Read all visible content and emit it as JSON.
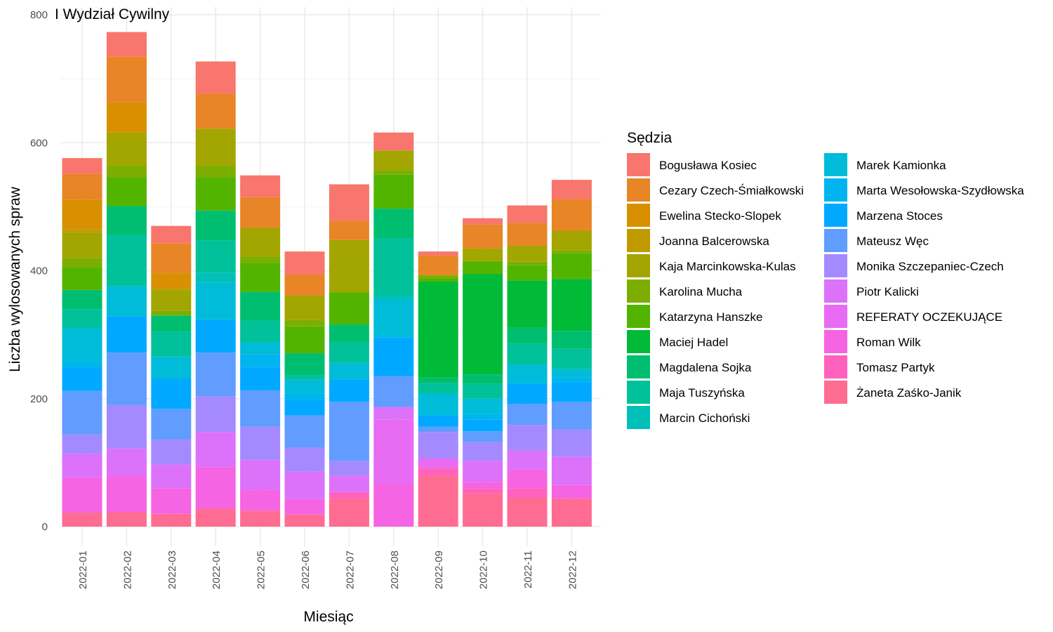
{
  "chart_data": {
    "type": "bar",
    "stacked": true,
    "title": "I Wydział Cywilny",
    "xlabel": "Miesiąc",
    "ylabel": "Liczba wylosowanych spraw",
    "ylim": [
      0,
      800
    ],
    "yticks": [
      0,
      200,
      400,
      600,
      800
    ],
    "grid": true,
    "legend_title": "Sędzia",
    "legend_position": "right",
    "categories": [
      "2022-01",
      "2022-02",
      "2022-03",
      "2022-04",
      "2022-05",
      "2022-06",
      "2022-07",
      "2022-08",
      "2022-09",
      "2022-10",
      "2022-11",
      "2022-12"
    ],
    "series": [
      {
        "name": "Żaneta Zaśko-Janik",
        "color": "#FF6C91",
        "values": [
          22,
          23,
          20,
          28,
          25,
          19,
          44,
          0,
          80,
          52,
          45,
          44
        ]
      },
      {
        "name": "Tomasz Partyk",
        "color": "#FF62BC",
        "values": [
          0,
          0,
          0,
          0,
          0,
          0,
          10,
          0,
          12,
          8,
          15,
          0
        ]
      },
      {
        "name": "Roman Wilk",
        "color": "#F564E3",
        "values": [
          55,
          57,
          40,
          65,
          33,
          24,
          0,
          67,
          0,
          10,
          29,
          21
        ]
      },
      {
        "name": "REFERATY OCZEKUJĄCE",
        "color": "#E76BF3",
        "values": [
          0,
          0,
          0,
          0,
          0,
          0,
          0,
          100,
          15,
          0,
          0,
          0
        ]
      },
      {
        "name": "Piotr Kalicki",
        "color": "#DC71FA",
        "values": [
          37,
          42,
          37,
          55,
          46,
          43,
          26,
          20,
          0,
          33,
          30,
          44
        ]
      },
      {
        "name": "Monika Szczepaniec-Czech",
        "color": "#A58AFF",
        "values": [
          30,
          68,
          39,
          56,
          52,
          38,
          23,
          0,
          41,
          29,
          40,
          43
        ]
      },
      {
        "name": "Mateusz Węc",
        "color": "#619CFF",
        "values": [
          68,
          82,
          48,
          68,
          57,
          50,
          92,
          48,
          8,
          17,
          33,
          43
        ]
      },
      {
        "name": "Marzena Stoces",
        "color": "#00A9FF",
        "values": [
          36,
          57,
          47,
          52,
          37,
          24,
          35,
          61,
          18,
          18,
          32,
          30
        ]
      },
      {
        "name": "Marta Wesołowska-Szydłowska",
        "color": "#00B4EF",
        "values": [
          10,
          0,
          0,
          0,
          19,
          10,
          0,
          0,
          0,
          9,
          0,
          8
        ]
      },
      {
        "name": "Marek Kamionka",
        "color": "#00BCD8",
        "values": [
          52,
          47,
          35,
          57,
          19,
          22,
          26,
          59,
          34,
          24,
          29,
          13
        ]
      },
      {
        "name": "Marcin Cichoński",
        "color": "#00C0B8",
        "values": [
          0,
          0,
          0,
          16,
          0,
          0,
          0,
          6,
          0,
          0,
          0,
          0
        ]
      },
      {
        "name": "Maja Tuszyńska",
        "color": "#00C19A",
        "values": [
          30,
          80,
          39,
          50,
          34,
          7,
          32,
          90,
          16,
          23,
          33,
          32
        ]
      },
      {
        "name": "Magdalena Sojka",
        "color": "#00BE70",
        "values": [
          30,
          45,
          25,
          47,
          45,
          34,
          28,
          46,
          9,
          15,
          25,
          28
        ]
      },
      {
        "name": "Maciej Hadel",
        "color": "#00BA38",
        "values": [
          0,
          0,
          0,
          0,
          0,
          0,
          0,
          0,
          150,
          157,
          74,
          81
        ]
      },
      {
        "name": "Katarzyna Hanszke",
        "color": "#53B400",
        "values": [
          35,
          45,
          0,
          52,
          45,
          42,
          50,
          53,
          5,
          20,
          24,
          40
        ]
      },
      {
        "name": "Karolina Mucha",
        "color": "#7CAE00",
        "values": [
          15,
          18,
          7,
          18,
          10,
          10,
          0,
          7,
          5,
          0,
          5,
          5
        ]
      },
      {
        "name": "Kaja Marcinkowska-Kulas",
        "color": "#A3A500",
        "values": [
          40,
          52,
          33,
          58,
          45,
          38,
          82,
          31,
          0,
          20,
          25,
          30
        ]
      },
      {
        "name": "Joanna Balcerowska",
        "color": "#C09B00",
        "values": [
          5,
          0,
          3,
          0,
          0,
          0,
          0,
          0,
          0,
          0,
          0,
          0
        ]
      },
      {
        "name": "Ewelina Stecko-Slopek",
        "color": "#D89000",
        "values": [
          46,
          47,
          23,
          0,
          0,
          0,
          0,
          0,
          0,
          0,
          0,
          0
        ]
      },
      {
        "name": "Cezary Czech-Śmiałkowski",
        "color": "#E88526",
        "values": [
          40,
          72,
          47,
          55,
          48,
          33,
          30,
          0,
          31,
          37,
          36,
          50
        ]
      },
      {
        "name": "Bogusława Kosiec",
        "color": "#F8766D",
        "values": [
          25,
          38,
          27,
          50,
          34,
          36,
          57,
          28,
          6,
          10,
          27,
          30
        ]
      }
    ],
    "legend_columns": [
      [
        "Bogusława Kosiec",
        "Cezary Czech-Śmiałkowski",
        "Ewelina Stecko-Slopek",
        "Joanna Balcerowska",
        "Kaja Marcinkowska-Kulas",
        "Karolina Mucha",
        "Katarzyna Hanszke",
        "Maciej Hadel",
        "Magdalena Sojka",
        "Maja Tuszyńska",
        "Marcin Cichoński"
      ],
      [
        "Marek Kamionka",
        "Marta Wesołowska-Szydłowska",
        "Marzena Stoces",
        "Mateusz Węc",
        "Monika Szczepaniec-Czech",
        "Piotr Kalicki",
        "REFERATY OCZEKUJĄCE",
        "Roman Wilk",
        "Tomasz Partyk",
        "Żaneta Zaśko-Janik"
      ]
    ]
  }
}
